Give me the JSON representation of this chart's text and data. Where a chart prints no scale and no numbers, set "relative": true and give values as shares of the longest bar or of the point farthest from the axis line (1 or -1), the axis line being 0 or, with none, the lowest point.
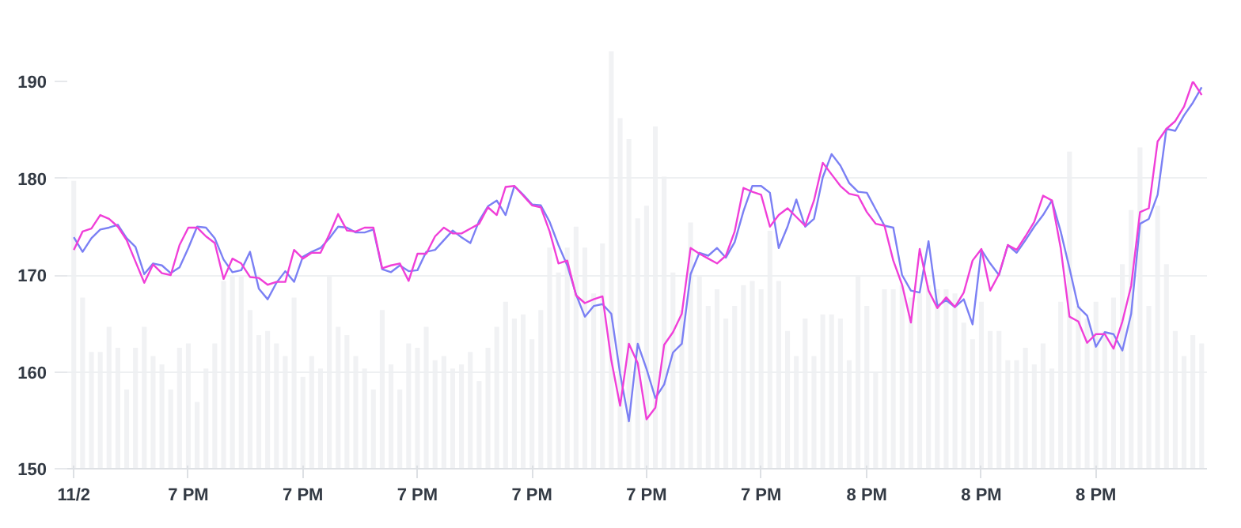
{
  "chart_data": [
    {
      "type": "bar",
      "relative": true,
      "color": "#f1f2f4",
      "categories": [
        null,
        null,
        null,
        null,
        null,
        null,
        null,
        null,
        null,
        null,
        null,
        null,
        null,
        null,
        null,
        null,
        null,
        null,
        null,
        null,
        null,
        null,
        null,
        null,
        null,
        null,
        null,
        null,
        null,
        null,
        null,
        null,
        null,
        null,
        null,
        null,
        null,
        null,
        null,
        null,
        null,
        null,
        null,
        null,
        null,
        null,
        null,
        null,
        null,
        null,
        null,
        null,
        null,
        null,
        null,
        null,
        null,
        null,
        null,
        null,
        null,
        null,
        null,
        null,
        null,
        null,
        null,
        null,
        null,
        null,
        null,
        null,
        null,
        null,
        null,
        null,
        null,
        null,
        null,
        null,
        null,
        null,
        null,
        null,
        null,
        null,
        null,
        null,
        null,
        null,
        null,
        null,
        null,
        null,
        null,
        null,
        null,
        null,
        null,
        null,
        null,
        null,
        null,
        null,
        null,
        null,
        null,
        null,
        null,
        null,
        null,
        null,
        null,
        null,
        null,
        null,
        null,
        null,
        null,
        null,
        null,
        null,
        null,
        null,
        null,
        null,
        null,
        null,
        null
      ],
      "values": [
        0.69,
        0.41,
        0.28,
        0.28,
        0.34,
        0.29,
        0.19,
        0.29,
        0.34,
        0.27,
        0.25,
        0.19,
        0.29,
        0.3,
        0.16,
        0.24,
        0.3,
        0.45,
        0.46,
        0.46,
        0.38,
        0.32,
        0.33,
        0.3,
        0.27,
        0.41,
        0.22,
        0.27,
        0.24,
        0.46,
        0.34,
        0.32,
        0.27,
        0.24,
        0.19,
        0.38,
        0.25,
        0.19,
        0.3,
        0.29,
        0.34,
        0.26,
        0.27,
        0.24,
        0.25,
        0.28,
        0.21,
        0.29,
        0.34,
        0.4,
        0.36,
        0.37,
        0.31,
        0.38,
        0.53,
        0.47,
        0.53,
        0.58,
        0.53,
        0.42,
        0.54,
        1,
        0.84,
        0.79,
        0.6,
        0.63,
        0.82,
        0.7,
        0.47,
        0.38,
        0.59,
        0.46,
        0.39,
        0.43,
        0.36,
        0.39,
        0.44,
        0.45,
        0.43,
        0.57,
        0.45,
        0.33,
        0.27,
        0.36,
        0.27,
        0.37,
        0.37,
        0.36,
        0.26,
        0.46,
        0.39,
        0.23,
        0.43,
        0.43,
        0.44,
        0.41,
        0.42,
        0.44,
        0.43,
        0.43,
        0.42,
        0.35,
        0.31,
        0.4,
        0.33,
        0.33,
        0.26,
        0.26,
        0.29,
        0.25,
        0.3,
        0.24,
        0.4,
        0.76,
        0.39,
        0.36,
        0.4,
        0.33,
        0.41,
        0.49,
        0.62,
        0.77,
        0.39,
        0.63,
        0.49,
        0.33,
        0.27,
        0.32,
        0.3
      ]
    },
    {
      "type": "line",
      "categories": [
        "11/2",
        null,
        null,
        null,
        null,
        null,
        null,
        null,
        null,
        null,
        null,
        null,
        null,
        "7 PM",
        null,
        null,
        null,
        null,
        null,
        null,
        null,
        null,
        null,
        null,
        null,
        null,
        "7 PM",
        null,
        null,
        null,
        null,
        null,
        null,
        null,
        null,
        null,
        null,
        null,
        null,
        "7 PM",
        null,
        null,
        null,
        null,
        null,
        null,
        null,
        null,
        null,
        null,
        null,
        null,
        "7 PM",
        null,
        null,
        null,
        null,
        null,
        null,
        null,
        null,
        null,
        null,
        null,
        null,
        "7 PM",
        null,
        null,
        null,
        null,
        null,
        null,
        null,
        null,
        null,
        null,
        null,
        null,
        "7 PM",
        null,
        null,
        null,
        null,
        null,
        null,
        null,
        null,
        null,
        null,
        null,
        "8 PM",
        null,
        null,
        null,
        null,
        null,
        null,
        null,
        null,
        null,
        null,
        null,
        null,
        "8 PM",
        null,
        null,
        null,
        null,
        null,
        null,
        null,
        null,
        null,
        null,
        null,
        null,
        "8 PM",
        null,
        null,
        null,
        null,
        null,
        null,
        null,
        null,
        null,
        null,
        null,
        null
      ],
      "ylim": [
        150,
        190
      ],
      "yticks": [
        150,
        160,
        170,
        180,
        190
      ],
      "grid": "y",
      "marker": "none",
      "line_style": "solid",
      "series": [
        {
          "color": "#7b80f4",
          "values": [
            173.9,
            172.4,
            173.8,
            174.7,
            174.9,
            175.2,
            173.8,
            172.9,
            170.1,
            171.2,
            171,
            170.2,
            170.8,
            172.8,
            175,
            174.9,
            173.8,
            171.6,
            170.3,
            170.5,
            172.4,
            168.6,
            167.5,
            169.2,
            170.4,
            169.3,
            171.9,
            172.4,
            172.8,
            173.8,
            175,
            174.9,
            174.4,
            174.4,
            174.7,
            170.6,
            170.3,
            171,
            170.4,
            170.5,
            172.4,
            172.6,
            173.6,
            174.6,
            173.9,
            173.3,
            175.6,
            177.1,
            177.7,
            176.2,
            179.2,
            178.3,
            177.3,
            177.2,
            175.5,
            173.1,
            171,
            168,
            165.7,
            166.8,
            167,
            166,
            159.8,
            154.9,
            162.9,
            160.3,
            157.3,
            158.7,
            162,
            162.9,
            170.1,
            172.3,
            172,
            172.8,
            171.8,
            173.4,
            176.6,
            179.2,
            179.2,
            178.5,
            172.8,
            175,
            177.8,
            175,
            175.8,
            180.1,
            182.5,
            181.3,
            179.5,
            178.6,
            178.5,
            176.8,
            175.1,
            174.9,
            170,
            168.4,
            168.2,
            173.5,
            166.8,
            167.4,
            166.7,
            167.5,
            164.9,
            172.6,
            171.2,
            170,
            173.1,
            172.3,
            173.6,
            175,
            176.2,
            177.7,
            174.5,
            170.7,
            166.7,
            165.8,
            162.6,
            164.1,
            163.9,
            162.2,
            166,
            175.3,
            175.8,
            178.3,
            185.1,
            184.9,
            186.5,
            187.8,
            189.4
          ]
        },
        {
          "color": "#f03fd8",
          "values": [
            172.6,
            174.5,
            174.8,
            176.2,
            175.8,
            175,
            173.6,
            171.4,
            169.2,
            171.1,
            170.2,
            170,
            173.1,
            174.9,
            174.9,
            174,
            173.3,
            169.6,
            171.7,
            171.2,
            169.8,
            169.7,
            169,
            169.3,
            169.3,
            172.6,
            171.7,
            172.3,
            172.3,
            174.2,
            176.3,
            174.6,
            174.5,
            174.9,
            174.9,
            170.7,
            171,
            171.2,
            169.4,
            172.2,
            172.2,
            174,
            174.9,
            174.3,
            174.3,
            174.8,
            175.3,
            177,
            176.2,
            179.1,
            179.2,
            178.2,
            177.2,
            177,
            174.5,
            171.2,
            171.5,
            167.9,
            167.1,
            167.5,
            167.8,
            161.2,
            156.5,
            162.9,
            160.9,
            155.1,
            156.3,
            162.8,
            164.1,
            166,
            172.8,
            172.2,
            171.7,
            171.2,
            172,
            174.5,
            179,
            178.6,
            178.3,
            175,
            176.2,
            176.9,
            176,
            175.1,
            177.7,
            181.6,
            180.4,
            179.2,
            178.4,
            178.2,
            176.5,
            175.3,
            175.1,
            171.5,
            169,
            165.1,
            172.7,
            168.4,
            166.6,
            167.7,
            166.7,
            168.2,
            171.5,
            172.7,
            168.4,
            170.1,
            173.1,
            172.6,
            174,
            175.5,
            178.2,
            177.7,
            172.8,
            165.7,
            165.2,
            163,
            163.9,
            163.9,
            162.4,
            165.2,
            168.9,
            176.5,
            176.9,
            183.8,
            185.1,
            185.9,
            187.4,
            190,
            188.6
          ]
        }
      ]
    }
  ]
}
